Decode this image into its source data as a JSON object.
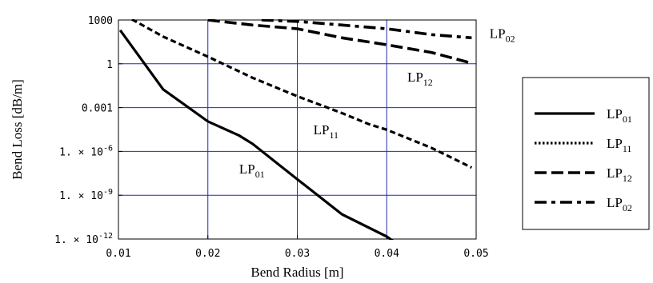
{
  "chart_data": {
    "type": "line",
    "title": "",
    "xlabel": "Bend Radius [m]",
    "ylabel": "Bend Loss [dB/m]",
    "xlim": [
      0.01,
      0.05
    ],
    "ylim": [
      1e-12,
      1000
    ],
    "yscale": "log",
    "grid": true,
    "grid_color": "#1f2fa8",
    "x_ticks": [
      {
        "value": 0.01,
        "label": "0.01"
      },
      {
        "value": 0.02,
        "label": "0.02"
      },
      {
        "value": 0.03,
        "label": "0.03"
      },
      {
        "value": 0.04,
        "label": "0.04"
      },
      {
        "value": 0.05,
        "label": "0.05"
      }
    ],
    "y_ticks": [
      {
        "value": 1000,
        "label": "1000",
        "mantissa": "",
        "exponent": ""
      },
      {
        "value": 1,
        "label": "1",
        "mantissa": "",
        "exponent": ""
      },
      {
        "value": 0.001,
        "label": "0.001",
        "mantissa": "",
        "exponent": ""
      },
      {
        "value": 1e-06,
        "label": "",
        "mantissa": "1. ⨯ 10",
        "exponent": "-6"
      },
      {
        "value": 1e-09,
        "label": "",
        "mantissa": "1. ⨯ 10",
        "exponent": "-9"
      },
      {
        "value": 1e-12,
        "label": "",
        "mantissa": "1. ⨯ 10",
        "exponent": "-12"
      }
    ],
    "legend_position": "right",
    "series": [
      {
        "name": "LP01",
        "name_main": "LP",
        "name_sub": "01",
        "dash": "solid",
        "x": [
          0.0102,
          0.015,
          0.02,
          0.0235,
          0.025,
          0.03,
          0.0315,
          0.035,
          0.04,
          0.042
        ],
        "y": [
          200,
          0.0177,
          0.000113,
          1.21e-05,
          3.32e-06,
          1.24e-08,
          2.35e-09,
          4.9e-11,
          1.47e-12,
          2e-13
        ]
      },
      {
        "name": "LP11",
        "name_main": "LP",
        "name_sub": "11",
        "dash": "dotted",
        "x": [
          0.0115,
          0.015,
          0.02,
          0.025,
          0.03,
          0.035,
          0.038,
          0.04,
          0.045,
          0.0495
        ],
        "y": [
          1100,
          73,
          3.06,
          0.11,
          0.006,
          0.000418,
          7.39e-05,
          3.06e-05,
          1.77e-06,
          7.85e-08
        ]
      },
      {
        "name": "LP12",
        "name_main": "LP",
        "name_sub": "12",
        "dash": "dashed",
        "x": [
          0.02,
          0.025,
          0.03,
          0.035,
          0.04,
          0.045,
          0.0495
        ],
        "y": [
          1000,
          450,
          250,
          60,
          20,
          6,
          1.1
        ]
      },
      {
        "name": "LP02",
        "name_main": "LP",
        "name_sub": "02",
        "dash": "dashdot",
        "x": [
          0.026,
          0.03,
          0.035,
          0.04,
          0.045,
          0.0495
        ],
        "y": [
          1000,
          800,
          450,
          250,
          100,
          60
        ]
      }
    ],
    "annotations": [
      {
        "main": "LP",
        "sub": "02",
        "x": 0.0515,
        "y": 60
      },
      {
        "main": "LP",
        "sub": "12",
        "x": 0.0423,
        "y": 0.06
      },
      {
        "main": "LP",
        "sub": "11",
        "x": 0.0318,
        "y": 1.5e-05
      },
      {
        "main": "LP",
        "sub": "01",
        "x": 0.0235,
        "y": 3e-08
      }
    ]
  }
}
